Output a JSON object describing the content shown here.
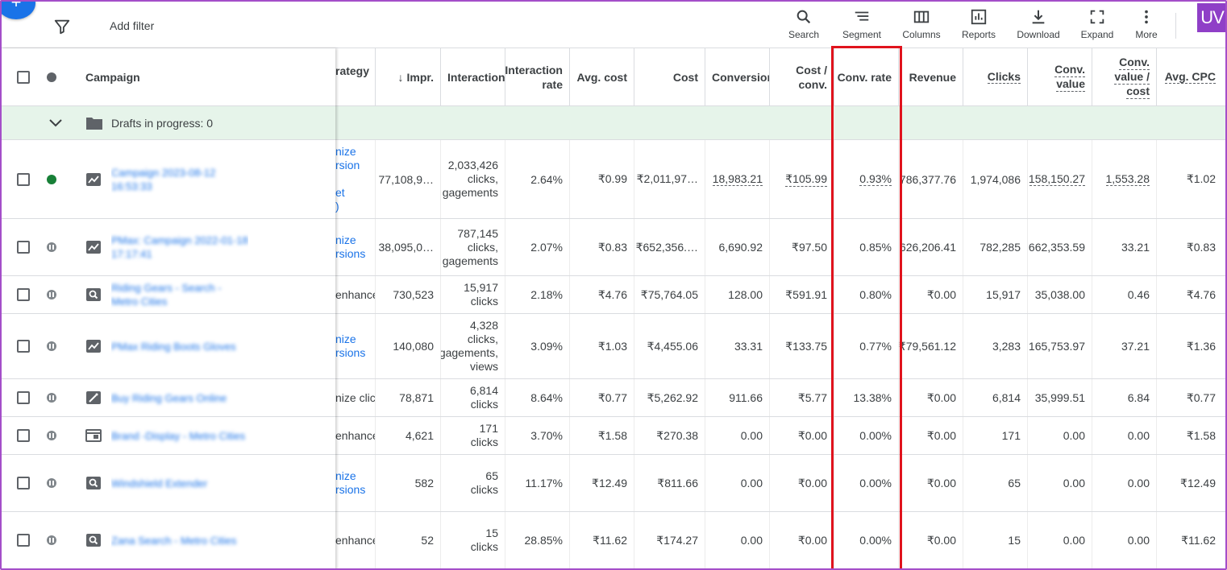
{
  "toolbar": {
    "add_filter": "Add filter",
    "tools": [
      {
        "label": "Search",
        "icon": "search-icon"
      },
      {
        "label": "Segment",
        "icon": "segment-icon"
      },
      {
        "label": "Columns",
        "icon": "columns-icon"
      },
      {
        "label": "Reports",
        "icon": "reports-icon"
      },
      {
        "label": "Download",
        "icon": "download-icon"
      },
      {
        "label": "Expand",
        "icon": "expand-icon"
      },
      {
        "label": "More",
        "icon": "more-vert-icon"
      }
    ],
    "avatar": "UV"
  },
  "headers": {
    "campaign": "Campaign",
    "strategy": "rategy",
    "impr": "Impr.",
    "interactions": "Interactions",
    "interaction_rate_1": "Interaction",
    "interaction_rate_2": "rate",
    "avg_cost": "Avg. cost",
    "cost": "Cost",
    "conversions": "Conversions",
    "cost_conv_1": "Cost /",
    "cost_conv_2": "conv.",
    "conv_rate": "Conv. rate",
    "revenue": "Revenue",
    "clicks": "Clicks",
    "conv_value_1": "Conv.",
    "conv_value_2": "value",
    "conv_value_cost_1": "Conv.",
    "conv_value_cost_2": "value /",
    "conv_value_cost_3": "cost",
    "avg_cpc": "Avg. CPC"
  },
  "drafts": "Drafts in progress: 0",
  "rows": [
    {
      "name": "Campaign 2023-08-12 16:53:33",
      "status": "enabled",
      "type": "performance-max-icon",
      "strategy": [
        "nize",
        "rsion",
        "",
        "et",
        ")"
      ],
      "impr": "77,108,9…",
      "interactions": [
        "2,033,426",
        "clicks,",
        "gagements"
      ],
      "interaction_rate": "2.64%",
      "avg_cost": "₹0.99",
      "cost": "₹2,011,97…",
      "conversions": "18,983.21",
      "cost_conv": "₹105.99",
      "conv_rate": "0.93%",
      "revenue": "786,377.76",
      "clicks": "1,974,086",
      "conv_value": ",158,150.27",
      "conv_value_cost": "1,553.28",
      "avg_cpc": "₹1.02"
    },
    {
      "name": "PMax: Campaign 2022-01-18 17:17:41",
      "status": "paused",
      "type": "performance-max-icon",
      "strategy": [
        "nize",
        "rsions"
      ],
      "impr": "38,095,0…",
      "interactions": [
        "787,145",
        "clicks,",
        "gagements"
      ],
      "interaction_rate": "2.07%",
      "avg_cost": "₹0.83",
      "cost": "₹652,356.…",
      "conversions": "6,690.92",
      "cost_conv": "₹97.50",
      "conv_rate": "0.85%",
      "revenue": "626,206.41",
      "clicks": "782,285",
      "conv_value": ",662,353.59",
      "conv_value_cost": "33.21",
      "avg_cpc": "₹0.83"
    },
    {
      "name": "Riding Gears - Search - Metro Cities",
      "status": "paused",
      "type": "search-campaign-icon",
      "strategy": [
        "enhance"
      ],
      "impr": "730,523",
      "interactions": [
        "15,917",
        "clicks"
      ],
      "interaction_rate": "2.18%",
      "avg_cost": "₹4.76",
      "cost": "₹75,764.05",
      "conversions": "128.00",
      "cost_conv": "₹591.91",
      "conv_rate": "0.80%",
      "revenue": "₹0.00",
      "clicks": "15,917",
      "conv_value": "35,038.00",
      "conv_value_cost": "0.46",
      "avg_cpc": "₹4.76"
    },
    {
      "name": "PMax Riding Boots Gloves",
      "status": "paused",
      "type": "performance-max-icon",
      "strategy": [
        "nize",
        "rsions"
      ],
      "impr": "140,080",
      "interactions": [
        "4,328",
        "clicks,",
        "gagements,",
        "views"
      ],
      "interaction_rate": "3.09%",
      "avg_cost": "₹1.03",
      "cost": "₹4,455.06",
      "conversions": "33.31",
      "cost_conv": "₹133.75",
      "conv_rate": "0.77%",
      "revenue": "₹79,561.12",
      "clicks": "3,283",
      "conv_value": "165,753.97",
      "conv_value_cost": "37.21",
      "avg_cpc": "₹1.36"
    },
    {
      "name": "Buy Riding Gears Online",
      "status": "paused",
      "type": "smart-campaign-icon",
      "strategy": [
        "nize clicl"
      ],
      "impr": "78,871",
      "interactions": [
        "6,814",
        "clicks"
      ],
      "interaction_rate": "8.64%",
      "avg_cost": "₹0.77",
      "cost": "₹5,262.92",
      "conversions": "911.66",
      "cost_conv": "₹5.77",
      "conv_rate": "13.38%",
      "revenue": "₹0.00",
      "clicks": "6,814",
      "conv_value": "35,999.51",
      "conv_value_cost": "6.84",
      "avg_cpc": "₹0.77"
    },
    {
      "name": "Brand -Display - Metro Cities",
      "status": "paused",
      "type": "display-campaign-icon",
      "strategy": [
        "enhance"
      ],
      "impr": "4,621",
      "interactions": [
        "171",
        "clicks"
      ],
      "interaction_rate": "3.70%",
      "avg_cost": "₹1.58",
      "cost": "₹270.38",
      "conversions": "0.00",
      "cost_conv": "₹0.00",
      "conv_rate": "0.00%",
      "revenue": "₹0.00",
      "clicks": "171",
      "conv_value": "0.00",
      "conv_value_cost": "0.00",
      "avg_cpc": "₹1.58"
    },
    {
      "name": "Windshield Extender",
      "status": "paused",
      "type": "search-campaign-icon",
      "strategy": [
        "nize",
        "rsions"
      ],
      "impr": "582",
      "interactions": [
        "65",
        "clicks"
      ],
      "interaction_rate": "11.17%",
      "avg_cost": "₹12.49",
      "cost": "₹811.66",
      "conversions": "0.00",
      "cost_conv": "₹0.00",
      "conv_rate": "0.00%",
      "revenue": "₹0.00",
      "clicks": "65",
      "conv_value": "0.00",
      "conv_value_cost": "0.00",
      "avg_cpc": "₹12.49"
    },
    {
      "name": "Zana Search - Metro Cities",
      "status": "paused",
      "type": "search-campaign-icon",
      "strategy": [
        "enhance"
      ],
      "impr": "52",
      "interactions": [
        "15",
        "clicks"
      ],
      "interaction_rate": "28.85%",
      "avg_cost": "₹11.62",
      "cost": "₹174.27",
      "conversions": "0.00",
      "cost_conv": "₹0.00",
      "conv_rate": "0.00%",
      "revenue": "₹0.00",
      "clicks": "15",
      "conv_value": "0.00",
      "conv_value_cost": "0.00",
      "avg_cpc": "₹11.62"
    }
  ],
  "colors": {
    "highlight": "#e0131d",
    "link": "#1a73e8",
    "drafts_bg": "#e6f4ea",
    "frame": "#a44ec9"
  }
}
